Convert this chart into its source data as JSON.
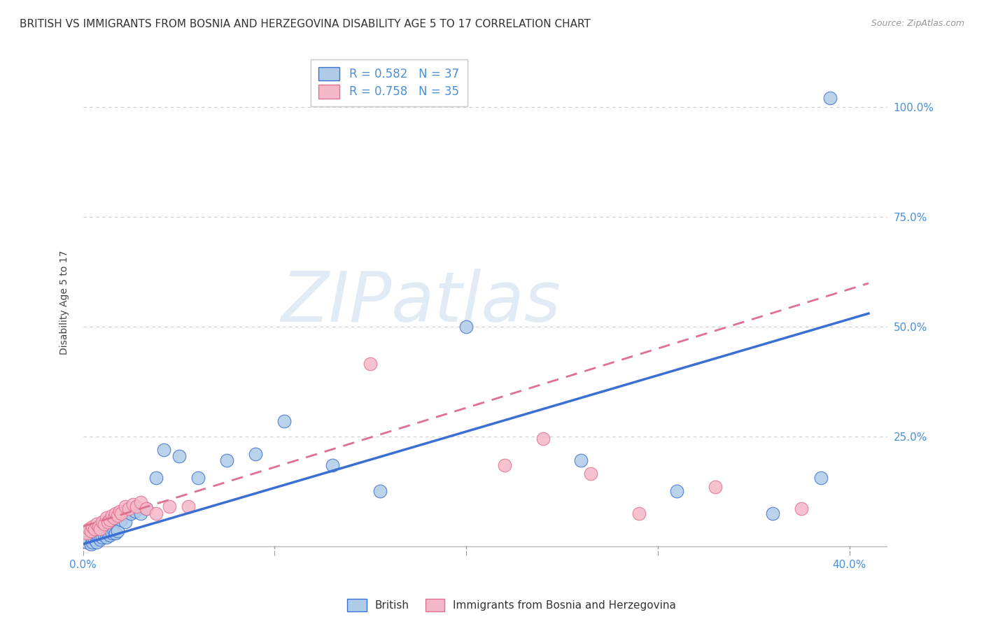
{
  "title": "BRITISH VS IMMIGRANTS FROM BOSNIA AND HERZEGOVINA DISABILITY AGE 5 TO 17 CORRELATION CHART",
  "source": "Source: ZipAtlas.com",
  "ylabel": "Disability Age 5 to 17",
  "xlim": [
    0.0,
    0.42
  ],
  "ylim": [
    -0.01,
    1.12
  ],
  "xticks": [
    0.0,
    0.1,
    0.2,
    0.3,
    0.4
  ],
  "xticklabels": [
    "0.0%",
    "",
    "",
    "",
    "40.0%"
  ],
  "yticks": [
    0.0,
    0.25,
    0.5,
    0.75,
    1.0
  ],
  "yticklabels": [
    "",
    "25.0%",
    "50.0%",
    "75.0%",
    "100.0%"
  ],
  "british_color": "#aecce8",
  "immigrant_color": "#f5b8c8",
  "british_line_color": "#3b6fd4",
  "immigrant_line_color": "#e07090",
  "tick_color": "#4a90d9",
  "watermark_text": "ZIPatlas",
  "watermark_color": "#c5d8ef",
  "british_x": [
    0.002,
    0.004,
    0.005,
    0.006,
    0.007,
    0.008,
    0.009,
    0.01,
    0.011,
    0.012,
    0.013,
    0.014,
    0.015,
    0.016,
    0.017,
    0.018,
    0.02,
    0.022,
    0.025,
    0.027,
    0.03,
    0.033,
    0.038,
    0.042,
    0.05,
    0.06,
    0.075,
    0.09,
    0.105,
    0.13,
    0.155,
    0.2,
    0.26,
    0.31,
    0.36,
    0.385,
    0.39
  ],
  "british_y": [
    0.01,
    0.005,
    0.01,
    0.015,
    0.01,
    0.02,
    0.015,
    0.02,
    0.025,
    0.02,
    0.03,
    0.025,
    0.03,
    0.035,
    0.03,
    0.035,
    0.06,
    0.055,
    0.075,
    0.08,
    0.075,
    0.085,
    0.155,
    0.22,
    0.205,
    0.155,
    0.195,
    0.21,
    0.285,
    0.185,
    0.125,
    0.5,
    0.195,
    0.125,
    0.075,
    0.155,
    1.02
  ],
  "immigrant_x": [
    0.002,
    0.003,
    0.004,
    0.005,
    0.006,
    0.007,
    0.008,
    0.009,
    0.01,
    0.011,
    0.012,
    0.013,
    0.014,
    0.015,
    0.016,
    0.017,
    0.018,
    0.019,
    0.02,
    0.022,
    0.024,
    0.026,
    0.028,
    0.03,
    0.033,
    0.038,
    0.045,
    0.055,
    0.15,
    0.22,
    0.24,
    0.265,
    0.29,
    0.33,
    0.375
  ],
  "immigrant_y": [
    0.03,
    0.04,
    0.035,
    0.045,
    0.04,
    0.05,
    0.045,
    0.04,
    0.055,
    0.05,
    0.065,
    0.055,
    0.06,
    0.07,
    0.065,
    0.075,
    0.07,
    0.08,
    0.075,
    0.09,
    0.085,
    0.095,
    0.09,
    0.1,
    0.085,
    0.075,
    0.09,
    0.09,
    0.415,
    0.185,
    0.245,
    0.165,
    0.075,
    0.135,
    0.085
  ],
  "british_line_slope": 1.28,
  "british_line_intercept": 0.005,
  "immigrant_line_slope": 1.35,
  "immigrant_line_intercept": 0.045,
  "background_color": "#ffffff",
  "grid_color": "#cccccc",
  "title_fontsize": 11,
  "label_fontsize": 10,
  "tick_fontsize": 11,
  "legend_fontsize": 12
}
